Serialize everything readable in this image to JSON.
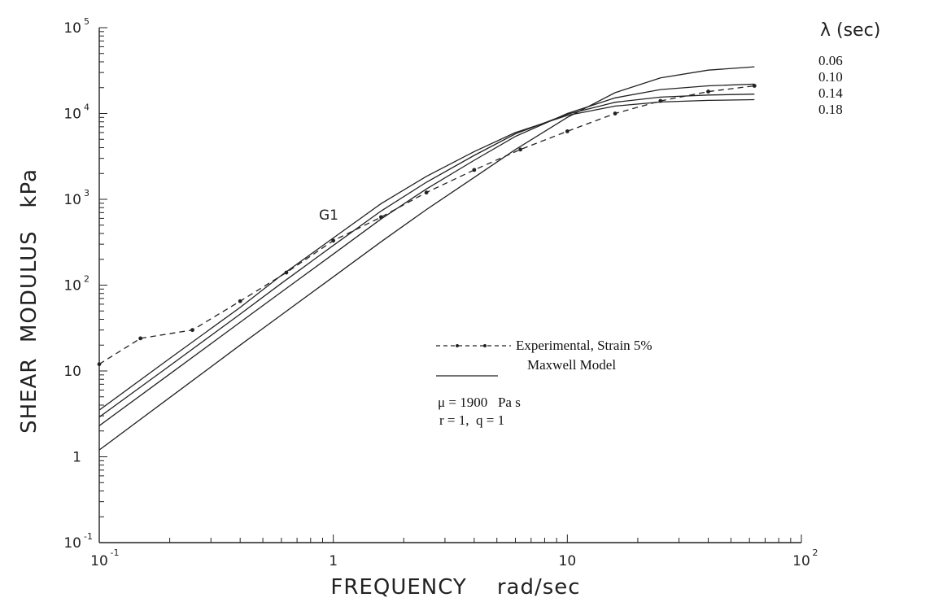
{
  "chart_data": {
    "type": "line",
    "xlabel": "FREQUENCY    rad/sec",
    "ylabel": "SHEAR  MODULUS   kPa",
    "x_scale": "log",
    "y_scale": "log",
    "xlim": [
      0.1,
      100
    ],
    "ylim": [
      0.1,
      100000
    ],
    "x_ticks": [
      {
        "value": 0.1,
        "base": "10",
        "exp": "-1"
      },
      {
        "value": 1,
        "base": "1",
        "exp": ""
      },
      {
        "value": 10,
        "base": "10",
        "exp": ""
      },
      {
        "value": 100,
        "base": "10",
        "exp": "2"
      }
    ],
    "y_ticks": [
      {
        "value": 0.1,
        "base": "10",
        "exp": "-1"
      },
      {
        "value": 1,
        "base": "1",
        "exp": ""
      },
      {
        "value": 10,
        "base": "10",
        "exp": ""
      },
      {
        "value": 100,
        "base": "10",
        "exp": "2"
      },
      {
        "value": 1000,
        "base": "10",
        "exp": "3"
      },
      {
        "value": 10000,
        "base": "10",
        "exp": "4"
      },
      {
        "value": 100000,
        "base": "10",
        "exp": "5"
      }
    ],
    "lambda_title": "λ (sec)",
    "lambda_values": [
      "0.06",
      "0.10",
      "0.14",
      "0.18"
    ],
    "curve_label": "G1",
    "series": [
      {
        "style": "dashed-markers",
        "x": [
          0.1,
          0.15,
          0.25,
          0.4,
          0.63,
          1.0,
          1.6,
          2.5,
          4.0,
          6.3,
          10,
          16,
          25,
          40,
          63
        ],
        "y": [
          12,
          24,
          30,
          65,
          140,
          330,
          620,
          1200,
          2200,
          3800,
          6200,
          10000,
          14000,
          18000,
          21000
        ]
      },
      {
        "style": "solid",
        "x": [
          0.1,
          0.2,
          0.4,
          0.6,
          1.0,
          1.6,
          2.5,
          4,
          6,
          10,
          16,
          25,
          40,
          63
        ],
        "y": [
          3.5,
          14,
          55,
          130,
          355,
          890,
          1850,
          3600,
          6000,
          9500,
          12200,
          13600,
          14200,
          14500
        ]
      },
      {
        "style": "solid",
        "x": [
          0.1,
          0.2,
          0.4,
          0.6,
          1.0,
          1.6,
          2.5,
          4,
          6,
          10,
          16,
          25,
          40,
          63
        ],
        "y": [
          2.9,
          11.5,
          46,
          105,
          290,
          730,
          1580,
          3250,
          5800,
          9800,
          13500,
          15500,
          16400,
          16800
        ]
      },
      {
        "style": "solid",
        "x": [
          0.1,
          0.2,
          0.4,
          0.6,
          1.0,
          1.6,
          2.5,
          4,
          6,
          10,
          16,
          25,
          40,
          63
        ],
        "y": [
          2.3,
          9.2,
          37,
          83,
          230,
          590,
          1320,
          2850,
          5400,
          10000,
          15200,
          19000,
          21000,
          22000
        ]
      },
      {
        "style": "solid",
        "x": [
          0.1,
          0.2,
          0.4,
          0.6,
          1.0,
          1.6,
          2.5,
          4,
          6,
          10,
          16,
          25,
          40,
          63
        ],
        "y": [
          1.2,
          4.9,
          20,
          45,
          125,
          320,
          760,
          1800,
          3800,
          9000,
          17500,
          26000,
          32000,
          35000
        ]
      }
    ],
    "legend": {
      "experimental_label": "Experimental, Strain 5%",
      "model_label": "Maxwell Model",
      "params_line1": "μ = 1900   Pa s",
      "params_line2": "r = 1,  q = 1"
    }
  }
}
